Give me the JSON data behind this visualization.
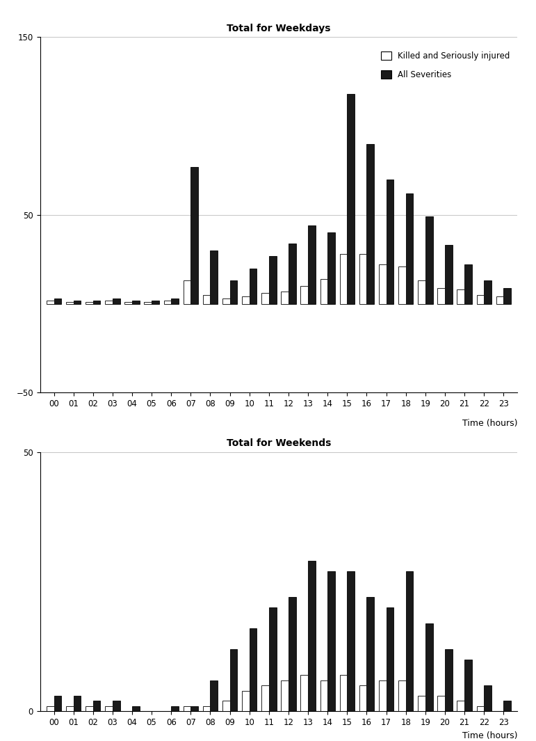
{
  "hours": [
    "00",
    "01",
    "02",
    "03",
    "04",
    "05",
    "06",
    "07",
    "08",
    "09",
    "10",
    "11",
    "12",
    "13",
    "14",
    "15",
    "16",
    "17",
    "18",
    "19",
    "20",
    "21",
    "22",
    "23"
  ],
  "weekday_ksi": [
    2,
    1,
    1,
    2,
    1,
    1,
    2,
    13,
    5,
    3,
    4,
    6,
    7,
    10,
    14,
    28,
    28,
    22,
    21,
    13,
    9,
    8,
    5,
    4
  ],
  "weekday_all": [
    3,
    2,
    2,
    3,
    2,
    2,
    3,
    77,
    30,
    13,
    20,
    27,
    34,
    44,
    40,
    118,
    90,
    70,
    62,
    49,
    33,
    22,
    13,
    9
  ],
  "weekend_ksi": [
    1,
    1,
    1,
    1,
    0,
    0,
    0,
    1,
    1,
    2,
    4,
    5,
    6,
    7,
    6,
    7,
    5,
    6,
    6,
    3,
    3,
    2,
    1,
    0
  ],
  "weekend_all": [
    3,
    3,
    2,
    2,
    1,
    0,
    1,
    1,
    6,
    12,
    16,
    20,
    22,
    29,
    27,
    27,
    22,
    20,
    27,
    17,
    12,
    10,
    5,
    2
  ],
  "weekday_ylim": [
    -50,
    150
  ],
  "weekday_yticks": [
    -50,
    50,
    150
  ],
  "weekend_ylim": [
    0,
    50
  ],
  "weekend_yticks": [
    0,
    50
  ],
  "title_weekday": "Total for Weekdays",
  "title_weekend": "Total for Weekends",
  "xlabel": "Time (hours)",
  "legend_ksi": "Killed and Seriously injured",
  "legend_all": "All Severities",
  "bar_width": 0.38,
  "color_ksi": "#ffffff",
  "color_all": "#1a1a1a",
  "edgecolor": "#000000",
  "title_fontsize": 10,
  "label_fontsize": 9,
  "tick_fontsize": 8.5,
  "legend_fontsize": 8.5
}
